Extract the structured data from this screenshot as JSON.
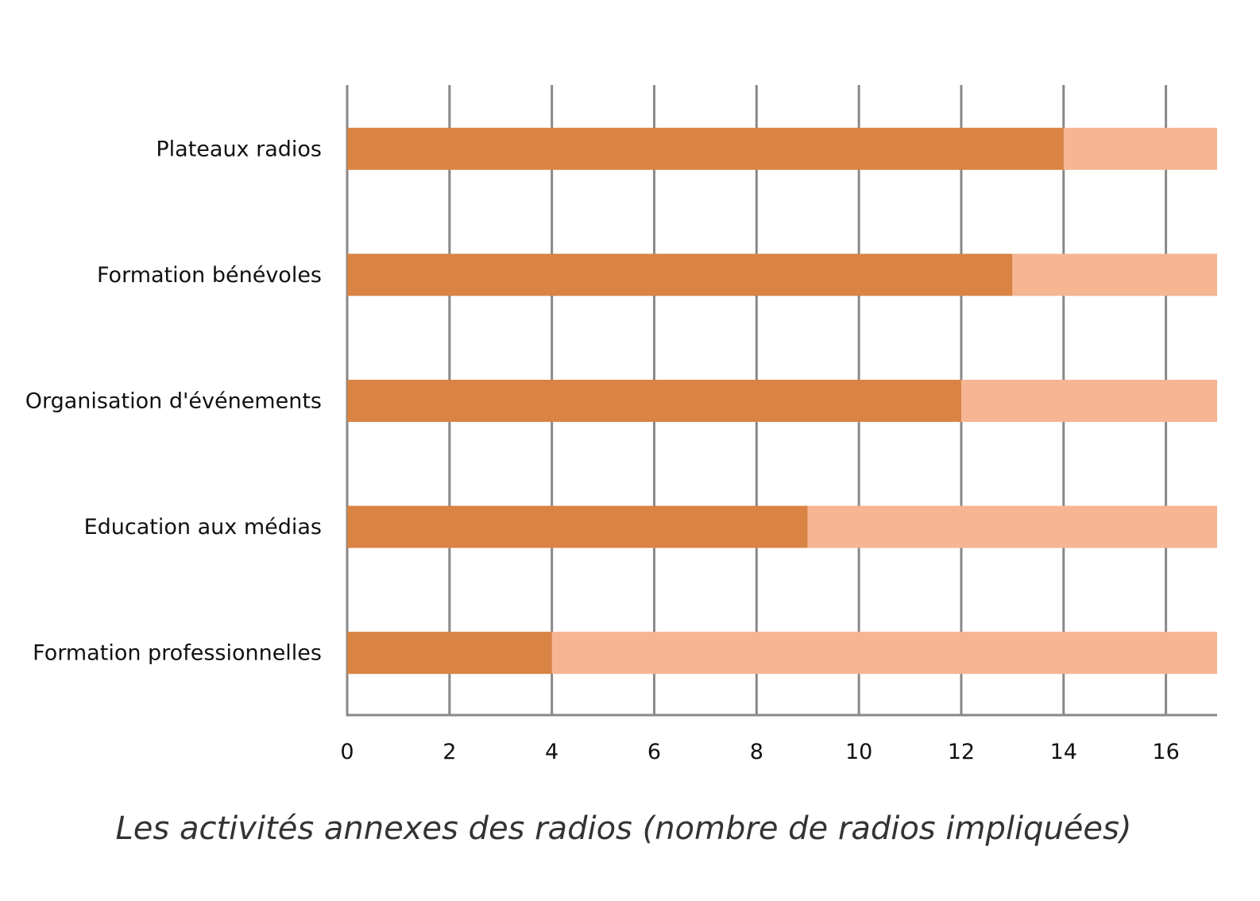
{
  "chart_data": {
    "type": "bar",
    "orientation": "horizontal",
    "stacked": true,
    "categories": [
      "Plateaux radios",
      "Formation bénévoles",
      "Organisation d'événements",
      "Education aux médias",
      "Formation professionnelles"
    ],
    "series": [
      {
        "values": [
          14,
          13,
          12,
          9,
          4
        ],
        "color": "#D98344"
      },
      {
        "values": [
          3,
          4,
          5,
          8,
          13
        ],
        "color": "#F6B593"
      }
    ],
    "xlim": [
      0,
      17
    ],
    "xticks": [
      "0",
      "2",
      "4",
      "6",
      "8",
      "10",
      "12",
      "14",
      "16"
    ],
    "title": "Les activités annexes des radios (nombre de radios impliquées)",
    "xlabel": "",
    "ylabel": "",
    "grid": true,
    "grid_color": "#888888"
  }
}
